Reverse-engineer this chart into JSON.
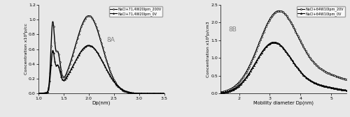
{
  "panel_A": {
    "label": "8A",
    "xlabel": "Dp(nm)",
    "ylabel": "Concentration x10⁴p/cc",
    "xlim": [
      1.0,
      3.5
    ],
    "ylim": [
      0,
      1.2
    ],
    "yticks": [
      0,
      0.2,
      0.4,
      0.6,
      0.8,
      1.0,
      1.2
    ],
    "xticks": [
      1.0,
      1.5,
      2.0,
      2.5,
      3.0,
      3.5
    ],
    "legend1": "NaCl+71,4W20lpm_200V",
    "legend2": "NaCl+71,4W20lpm_0V"
  },
  "panel_B": {
    "label": "8B",
    "xlabel": "Mobility diameter Dp(nm)",
    "ylabel": "Concentration x10⁴p/cm3",
    "xlim": [
      1.4,
      5.5
    ],
    "ylim": [
      0,
      2.5
    ],
    "yticks": [
      0,
      0.5,
      1.0,
      1.5,
      2.0,
      2.5
    ],
    "xticks": [
      2,
      3,
      4,
      5
    ],
    "legend1": "NaCl+64W10lpm_20V",
    "legend2": "NaCl+64W10lpm_0V"
  }
}
